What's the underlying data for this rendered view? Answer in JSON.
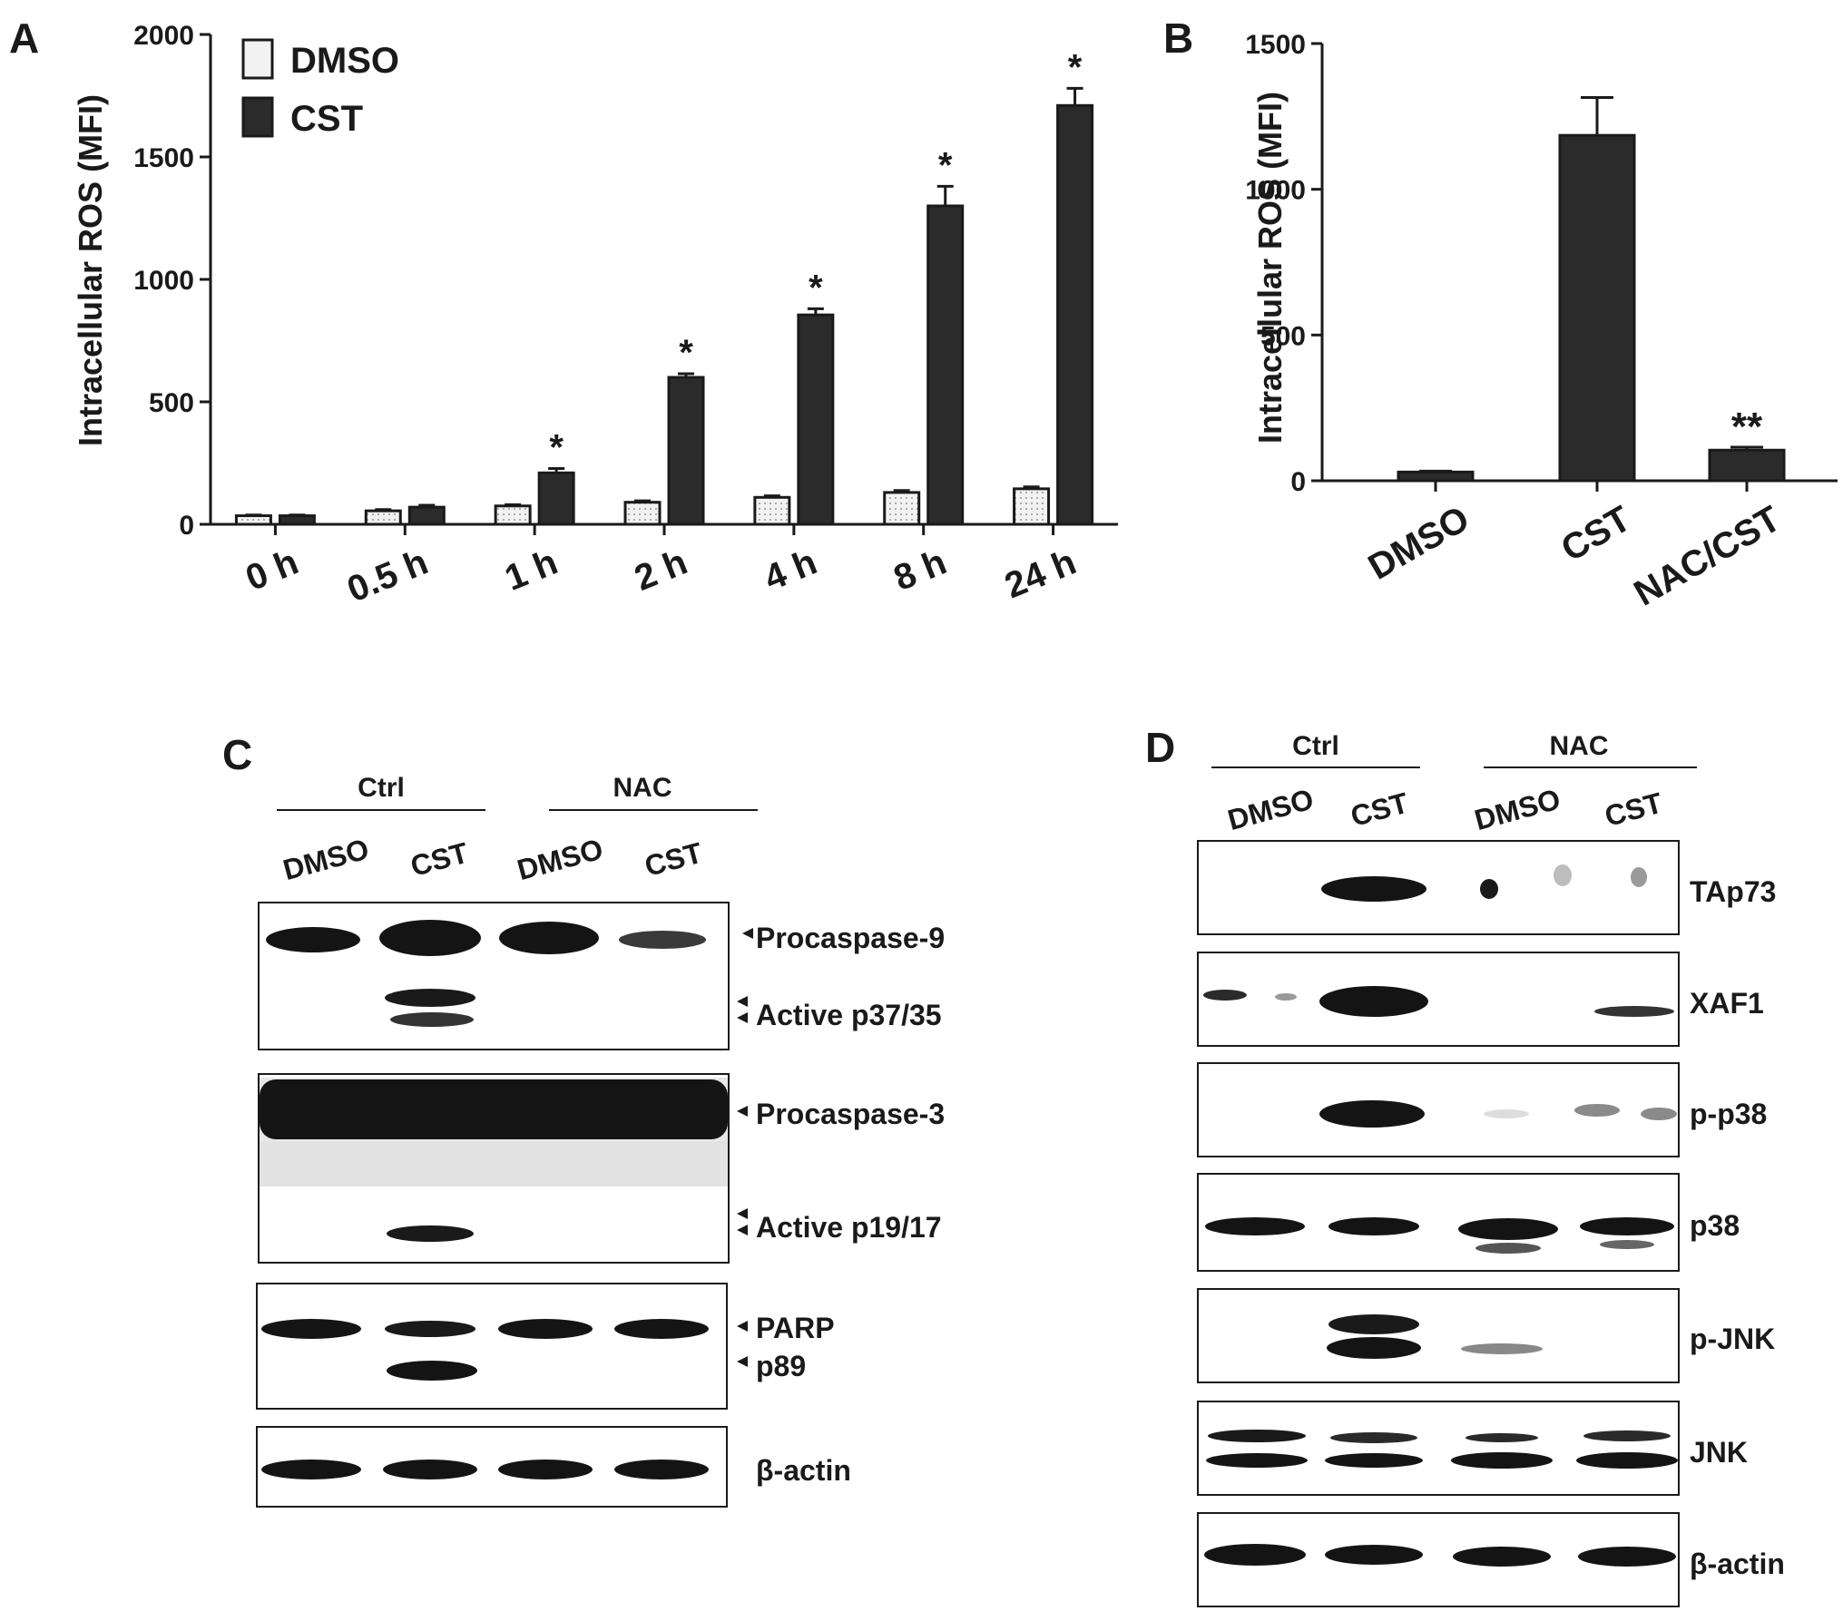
{
  "panel_labels": {
    "a": "A",
    "b": "B",
    "c": "C",
    "d": "D"
  },
  "colors": {
    "cst_bar": "#2b2b2b",
    "dmso_bar": "#f2f2f2",
    "axis": "#1a1a1a",
    "blot_bg": "#ffffff",
    "band": "#141414"
  },
  "chart_data": [
    {
      "type": "bar",
      "panel": "A",
      "ylabel": "Intracellular ROS (MFI)",
      "ylim": [
        0,
        2000
      ],
      "yticks": [
        0,
        500,
        1000,
        1500,
        2000
      ],
      "categories": [
        "0 h",
        "0.5 h",
        "1 h",
        "2 h",
        "4 h",
        "8 h",
        "24 h"
      ],
      "legend": "top-left",
      "series": [
        {
          "name": "DMSO",
          "values": [
            35,
            55,
            75,
            90,
            110,
            130,
            145
          ],
          "errors": [
            3,
            5,
            5,
            6,
            6,
            8,
            8
          ]
        },
        {
          "name": "CST",
          "values": [
            35,
            70,
            210,
            600,
            855,
            1300,
            1710
          ],
          "errors": [
            3,
            8,
            18,
            15,
            25,
            80,
            70
          ]
        }
      ],
      "annotations": [
        "",
        "",
        "*",
        "*",
        "*",
        "*",
        "*"
      ]
    },
    {
      "type": "bar",
      "panel": "B",
      "ylabel": "Intracellular ROS (MFI)",
      "ylim": [
        0,
        1500
      ],
      "yticks": [
        0,
        500,
        1000,
        1500
      ],
      "categories": [
        "DMSO",
        "CST",
        "NAC/CST"
      ],
      "series": [
        {
          "values": [
            30,
            1185,
            105
          ],
          "errors": [
            3,
            130,
            10
          ]
        }
      ],
      "annotations": [
        "",
        "",
        "**"
      ]
    }
  ],
  "blot_c": {
    "groups": [
      "Ctrl",
      "NAC"
    ],
    "lanes": [
      "DMSO",
      "CST",
      "DMSO",
      "CST"
    ],
    "labels": [
      "Procaspase-9",
      "Active p37/35",
      "Procaspase-3",
      "Active p19/17",
      "PARP",
      "p89",
      "β-actin"
    ]
  },
  "blot_d": {
    "groups": [
      "Ctrl",
      "NAC"
    ],
    "lanes": [
      "DMSO",
      "CST",
      "DMSO",
      "CST"
    ],
    "labels": [
      "TAp73",
      "XAF1",
      "p-p38",
      "p38",
      "p-JNK",
      "JNK",
      "β-actin"
    ]
  }
}
